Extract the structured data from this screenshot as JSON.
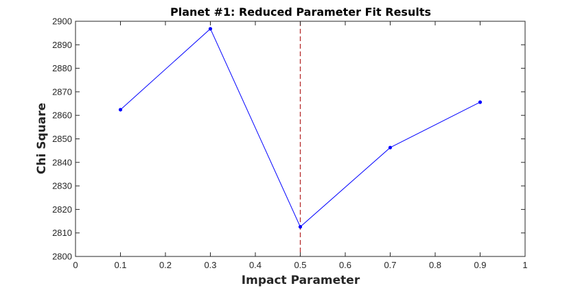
{
  "chart_data": {
    "type": "line",
    "title": "Planet #1: Reduced Parameter Fit Results",
    "xlabel": "Impact Parameter",
    "ylabel": "Chi Square",
    "xlim": [
      0,
      1
    ],
    "ylim": [
      2800,
      2900
    ],
    "xticks": [
      "0",
      "0.1",
      "0.2",
      "0.3",
      "0.4",
      "0.5",
      "0.6",
      "0.7",
      "0.8",
      "0.9",
      "1"
    ],
    "yticks": [
      "2800",
      "2810",
      "2820",
      "2830",
      "2840",
      "2850",
      "2860",
      "2870",
      "2880",
      "2890",
      "2900"
    ],
    "grid": false,
    "legend": "none",
    "series": [
      {
        "x": [
          0.1,
          0.3,
          0.5,
          0.7,
          0.9
        ],
        "y": [
          2862.4,
          2896.8,
          2812.6,
          2846.3,
          2865.6
        ],
        "color": "#0000ff",
        "marker": "dot"
      }
    ],
    "annotations": [
      {
        "type": "vline",
        "x": 0.5,
        "color": "#b22222",
        "style": "dashed"
      }
    ]
  }
}
